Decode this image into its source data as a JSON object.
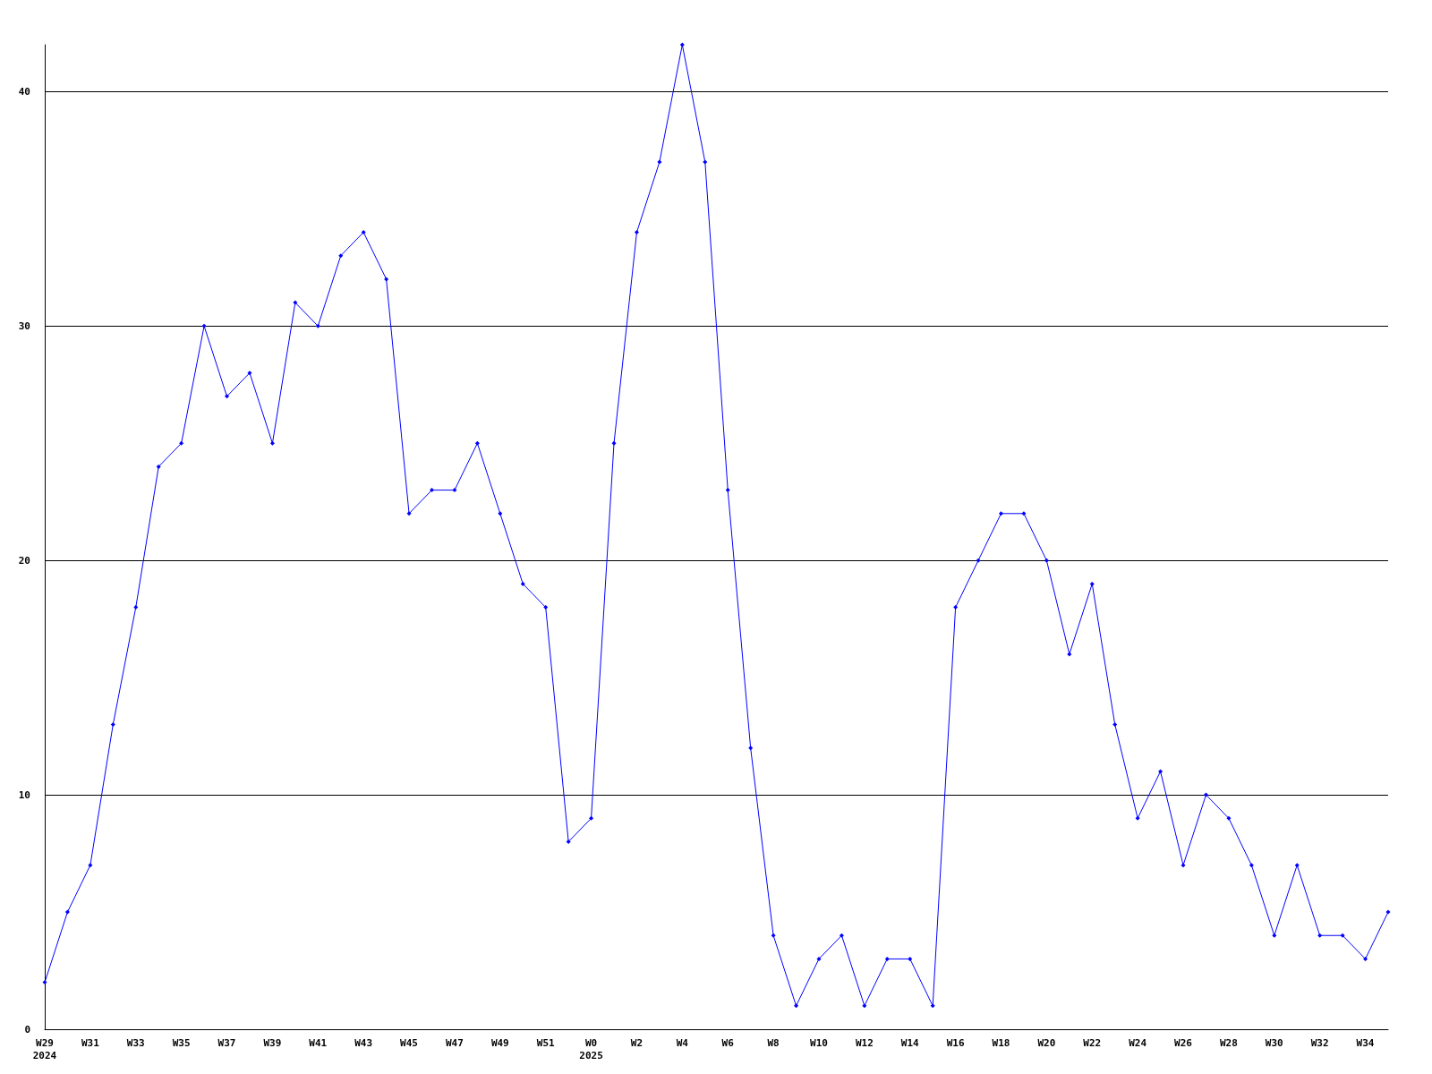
{
  "chart_data": {
    "type": "line",
    "categories": [
      "W29\n2024",
      null,
      "W31",
      null,
      "W33",
      null,
      "W35",
      null,
      "W37",
      null,
      "W39",
      null,
      "W41",
      null,
      "W43",
      null,
      "W45",
      null,
      "W47",
      null,
      "W49",
      null,
      "W51",
      null,
      "W0\n2025",
      null,
      "W2",
      null,
      "W4",
      null,
      "W6",
      null,
      "W8",
      null,
      "W10",
      null,
      "W12",
      null,
      "W14",
      null,
      "W16",
      null,
      "W18",
      null,
      "W20",
      null,
      "W22",
      null,
      "W24",
      null,
      "W26",
      null,
      "W28",
      null,
      "W30",
      null,
      "W32",
      null,
      "W34",
      null
    ],
    "series": [
      {
        "color": "#0000ff",
        "values": [
          2,
          5,
          7,
          13,
          18,
          24,
          25,
          30,
          27,
          28,
          25,
          31,
          30,
          33,
          34,
          32,
          22,
          23,
          23,
          25,
          22,
          19,
          18,
          8,
          9,
          25,
          34,
          37,
          42,
          37,
          23,
          12,
          4,
          1,
          3,
          4,
          1,
          3,
          3,
          1,
          18,
          20,
          22,
          22,
          20,
          16,
          19,
          13,
          9,
          11,
          7,
          10,
          9,
          7,
          4,
          7,
          4,
          4,
          3,
          5
        ]
      }
    ],
    "ylim": [
      0,
      42
    ],
    "yticks": [
      0,
      10,
      20,
      30,
      40
    ],
    "grid": "y",
    "marker": "diamond",
    "line_style": "solid"
  }
}
